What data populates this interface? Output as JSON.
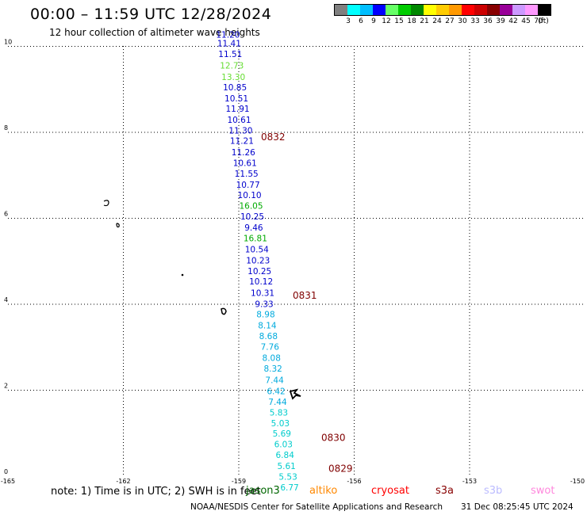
{
  "header": {
    "title": "00:00 – 11:59 UTC 12/28/2024",
    "subtitle": "12 hour collection of altimeter wave heights"
  },
  "legend": {
    "colors": [
      "#808080",
      "#00ffff",
      "#00bfff",
      "#0000ff",
      "#66ff66",
      "#00cc00",
      "#008800",
      "#ffff00",
      "#ffcc00",
      "#ff9900",
      "#ff0000",
      "#cc0000",
      "#880000",
      "#990099",
      "#cc99ff",
      "#ff99ff",
      "#000000"
    ],
    "labels": [
      "3",
      "6",
      "9",
      "12",
      "15",
      "18",
      "21",
      "24",
      "27",
      "30",
      "33",
      "36",
      "39",
      "42",
      "45",
      "70",
      "(ft)"
    ]
  },
  "axes": {
    "lat_ticks": [
      "0",
      "2",
      "4",
      "6",
      "8",
      "10"
    ],
    "lon_ticks": [
      "-165",
      "-162",
      "-159",
      "-156",
      "-153",
      "-150"
    ]
  },
  "passes": [
    {
      "label": "0832",
      "lat": 7.82
    },
    {
      "label": "0831",
      "lat": 4.13
    },
    {
      "label": "0830",
      "lat": 0.82
    },
    {
      "label": "0829",
      "lat": 0.1
    }
  ],
  "observations": [
    {
      "lat": 10.2,
      "lon": -159.28,
      "value": "11.20",
      "color": "#0000cc"
    },
    {
      "lat": 10.0,
      "lon": -159.25,
      "value": "11.41",
      "color": "#0000cc"
    },
    {
      "lat": 9.75,
      "lon": -159.22,
      "value": "11.51",
      "color": "#0000cc"
    },
    {
      "lat": 9.48,
      "lon": -159.18,
      "value": "12.73",
      "color": "#66dd33"
    },
    {
      "lat": 9.22,
      "lon": -159.14,
      "value": "13.30",
      "color": "#66dd33"
    },
    {
      "lat": 8.98,
      "lon": -159.1,
      "value": "10.85",
      "color": "#0000cc"
    },
    {
      "lat": 8.72,
      "lon": -159.06,
      "value": "10.51",
      "color": "#0000cc"
    },
    {
      "lat": 8.48,
      "lon": -159.03,
      "value": "11.91",
      "color": "#0000cc"
    },
    {
      "lat": 8.22,
      "lon": -158.99,
      "value": "10.61",
      "color": "#0000cc"
    },
    {
      "lat": 7.97,
      "lon": -158.95,
      "value": "11.30",
      "color": "#0000cc"
    },
    {
      "lat": 7.73,
      "lon": -158.92,
      "value": "11.21",
      "color": "#0000cc"
    },
    {
      "lat": 7.47,
      "lon": -158.88,
      "value": "11.26",
      "color": "#0000cc"
    },
    {
      "lat": 7.22,
      "lon": -158.84,
      "value": "10.61",
      "color": "#0000cc"
    },
    {
      "lat": 6.97,
      "lon": -158.8,
      "value": "11.55",
      "color": "#0000cc"
    },
    {
      "lat": 6.71,
      "lon": -158.76,
      "value": "10.77",
      "color": "#0000cc"
    },
    {
      "lat": 6.47,
      "lon": -158.72,
      "value": "10.10",
      "color": "#0000cc"
    },
    {
      "lat": 6.22,
      "lon": -158.68,
      "value": "16.05",
      "color": "#00aa00"
    },
    {
      "lat": 5.97,
      "lon": -158.65,
      "value": "10.25",
      "color": "#0000cc"
    },
    {
      "lat": 5.71,
      "lon": -158.61,
      "value": "9.46",
      "color": "#0000cc"
    },
    {
      "lat": 5.47,
      "lon": -158.57,
      "value": "16.81",
      "color": "#00aa00"
    },
    {
      "lat": 5.21,
      "lon": -158.53,
      "value": "10.54",
      "color": "#0000cc"
    },
    {
      "lat": 4.95,
      "lon": -158.5,
      "value": "10.23",
      "color": "#0000cc"
    },
    {
      "lat": 4.7,
      "lon": -158.46,
      "value": "10.25",
      "color": "#0000cc"
    },
    {
      "lat": 4.46,
      "lon": -158.42,
      "value": "10.12",
      "color": "#0000cc"
    },
    {
      "lat": 4.19,
      "lon": -158.38,
      "value": "10.31",
      "color": "#0000cc"
    },
    {
      "lat": 3.94,
      "lon": -158.34,
      "value": "9.33",
      "color": "#0000cc"
    },
    {
      "lat": 3.7,
      "lon": -158.3,
      "value": "8.98",
      "color": "#00aadd"
    },
    {
      "lat": 3.44,
      "lon": -158.26,
      "value": "8.14",
      "color": "#00aadd"
    },
    {
      "lat": 3.19,
      "lon": -158.23,
      "value": "8.68",
      "color": "#00aadd"
    },
    {
      "lat": 2.94,
      "lon": -158.19,
      "value": "7.76",
      "color": "#00aadd"
    },
    {
      "lat": 2.68,
      "lon": -158.15,
      "value": "8.08",
      "color": "#00aadd"
    },
    {
      "lat": 2.43,
      "lon": -158.11,
      "value": "8.32",
      "color": "#00aadd"
    },
    {
      "lat": 2.17,
      "lon": -158.07,
      "value": "7.44",
      "color": "#00aadd"
    },
    {
      "lat": 1.91,
      "lon": -158.03,
      "value": "6.42",
      "color": "#00aadd"
    },
    {
      "lat": 1.66,
      "lon": -157.99,
      "value": "7.44",
      "color": "#00aadd"
    },
    {
      "lat": 1.41,
      "lon": -157.96,
      "value": "5.83",
      "color": "#00cccc"
    },
    {
      "lat": 1.16,
      "lon": -157.92,
      "value": "5.03",
      "color": "#00cccc"
    },
    {
      "lat": 0.92,
      "lon": -157.88,
      "value": "5.69",
      "color": "#00cccc"
    },
    {
      "lat": 0.67,
      "lon": -157.84,
      "value": "6.03",
      "color": "#00cccc"
    },
    {
      "lat": 0.42,
      "lon": -157.8,
      "value": "6.84",
      "color": "#00cccc"
    },
    {
      "lat": 0.17,
      "lon": -157.76,
      "value": "5.61",
      "color": "#00cccc"
    },
    {
      "lat": -0.08,
      "lon": -157.72,
      "value": "5.53",
      "color": "#00cccc"
    },
    {
      "lat": -0.33,
      "lon": -157.68,
      "value": "6.77",
      "color": "#00cccc"
    }
  ],
  "footer": {
    "note": "note:  1) Time is in UTC; 2) SWH is in feet",
    "satellites": [
      {
        "name": "jason3",
        "color": "#006600"
      },
      {
        "name": "altiko",
        "color": "#ff8800"
      },
      {
        "name": "cryosat",
        "color": "#ff0000"
      },
      {
        "name": "s3a",
        "color": "#880000"
      },
      {
        "name": "s3b",
        "color": "#bbbbff"
      },
      {
        "name": "swot",
        "color": "#ff88dd"
      }
    ],
    "credit": "NOAA/NESDIS Center for Satellite Applications and Research",
    "generated": "31 Dec 08:25:45 UTC 2024"
  }
}
